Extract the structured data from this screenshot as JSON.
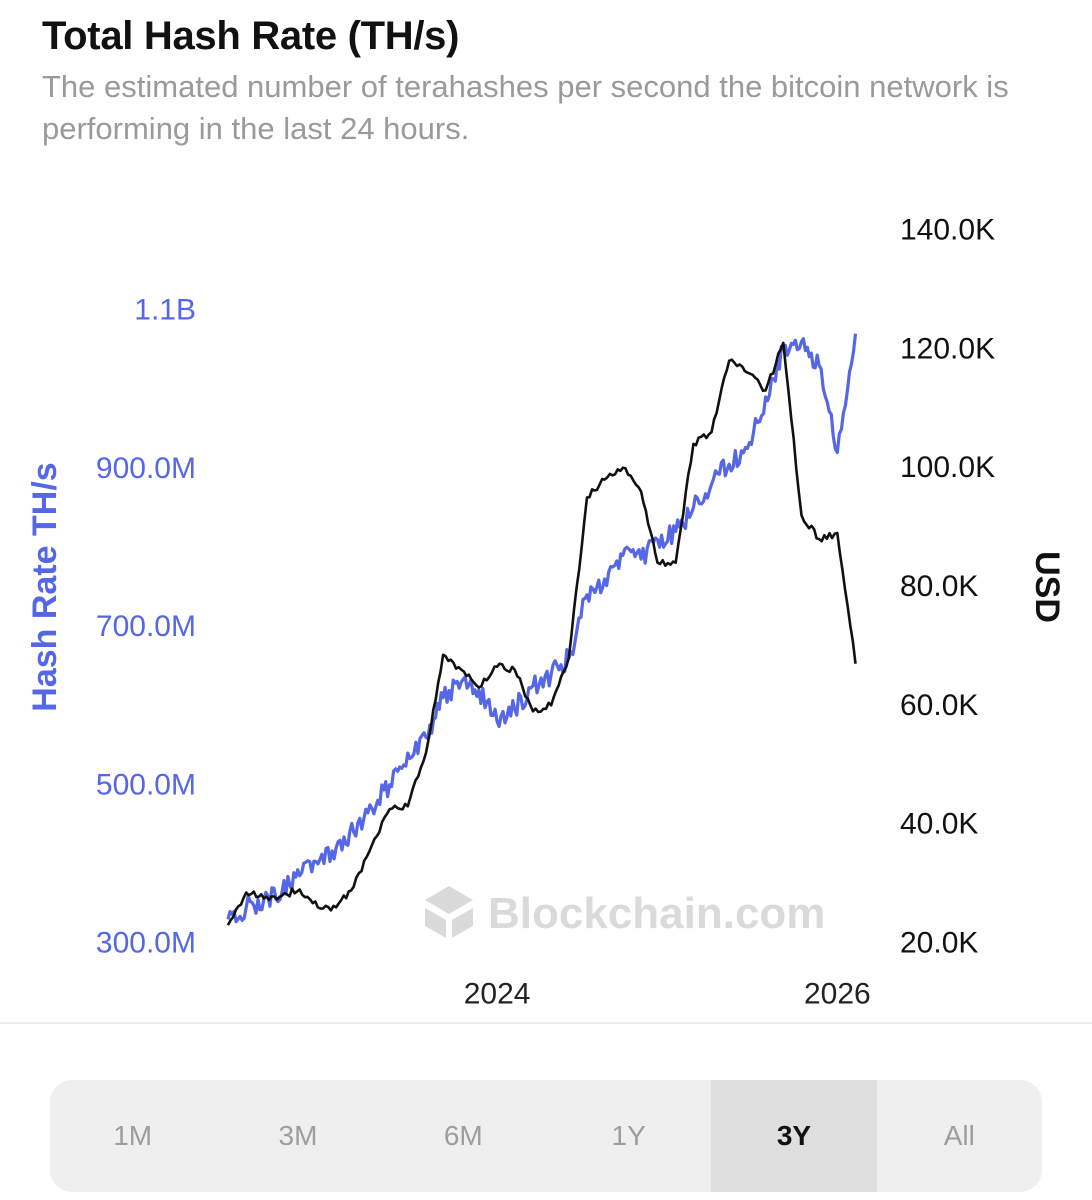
{
  "header": {
    "title": "Total Hash Rate (TH/s)",
    "subtitle": "The estimated number of terahashes per second the bitcoin network is performing in the last 24 hours."
  },
  "watermark": "Blockchain.com",
  "range_tabs": [
    {
      "label": "1M",
      "active": false
    },
    {
      "label": "3M",
      "active": false
    },
    {
      "label": "6M",
      "active": false
    },
    {
      "label": "1Y",
      "active": false
    },
    {
      "label": "3Y",
      "active": true
    },
    {
      "label": "All",
      "active": false
    }
  ],
  "colors": {
    "hash_rate": "#5567e6",
    "price": "#111111",
    "axis_left": "#5567e6",
    "axis_right": "#111111"
  },
  "chart_data": {
    "type": "line",
    "title": "Total Hash Rate (TH/s)",
    "x_range": [
      "2023-03-01",
      "2026-03-01"
    ],
    "x_ticks": [
      {
        "label": "2024",
        "date": "2024-06-01"
      },
      {
        "label": "2026",
        "date": "2026-01-01"
      }
    ],
    "y_left": {
      "label": "Hash Rate TH/s",
      "range": [
        300000000,
        1100000000
      ],
      "ticks": [
        {
          "value": 300000000,
          "label": "300.0M"
        },
        {
          "value": 500000000,
          "label": "500.0M"
        },
        {
          "value": 700000000,
          "label": "700.0M"
        },
        {
          "value": 900000000,
          "label": "900.0M"
        },
        {
          "value": 1100000000,
          "label": "1.1B"
        }
      ]
    },
    "y_right": {
      "label": "USD",
      "range": [
        20000,
        140000
      ],
      "ticks": [
        {
          "value": 20000,
          "label": "20.0K"
        },
        {
          "value": 40000,
          "label": "40.0K"
        },
        {
          "value": 60000,
          "label": "60.0K"
        },
        {
          "value": 80000,
          "label": "80.0K"
        },
        {
          "value": 100000,
          "label": "100.0K"
        },
        {
          "value": 120000,
          "label": "120.0K"
        },
        {
          "value": 140000,
          "label": "140.0K"
        }
      ]
    },
    "grid": false,
    "series": [
      {
        "axis": "left",
        "color": "#5567e6",
        "x": [
          "2023-03",
          "2023-04",
          "2023-05",
          "2023-06",
          "2023-07",
          "2023-08",
          "2023-09",
          "2023-10",
          "2023-11",
          "2023-12",
          "2024-01",
          "2024-02",
          "2024-03",
          "2024-04",
          "2024-05",
          "2024-06",
          "2024-07",
          "2024-08",
          "2024-09",
          "2024-10",
          "2024-11",
          "2024-12",
          "2025-01",
          "2025-02",
          "2025-03",
          "2025-04",
          "2025-05",
          "2025-06",
          "2025-07",
          "2025-08",
          "2025-09",
          "2025-10",
          "2025-11",
          "2025-12",
          "2026-01",
          "2026-02"
        ],
        "y": [
          330000000,
          345000000,
          355000000,
          365000000,
          385000000,
          400000000,
          420000000,
          440000000,
          470000000,
          500000000,
          540000000,
          560000000,
          610000000,
          630000000,
          620000000,
          580000000,
          595000000,
          625000000,
          640000000,
          660000000,
          740000000,
          760000000,
          790000000,
          785000000,
          810000000,
          820000000,
          850000000,
          880000000,
          905000000,
          925000000,
          990000000,
          1050000000,
          1060000000,
          1030000000,
          920000000,
          1070000000
        ]
      },
      {
        "axis": "right",
        "color": "#111111",
        "x": [
          "2023-03",
          "2023-04",
          "2023-05",
          "2023-06",
          "2023-07",
          "2023-08",
          "2023-09",
          "2023-10",
          "2023-11",
          "2023-12",
          "2024-01",
          "2024-02",
          "2024-03",
          "2024-04",
          "2024-05",
          "2024-06",
          "2024-07",
          "2024-08",
          "2024-09",
          "2024-10",
          "2024-11",
          "2024-12",
          "2025-01",
          "2025-02",
          "2025-03",
          "2025-04",
          "2025-05",
          "2025-06",
          "2025-07",
          "2025-08",
          "2025-09",
          "2025-10",
          "2025-11",
          "2025-12",
          "2026-01",
          "2026-02"
        ],
        "y": [
          23000,
          28500,
          27500,
          28000,
          29000,
          26000,
          26000,
          29500,
          36500,
          42500,
          43000,
          52000,
          68500,
          66000,
          63000,
          66500,
          66000,
          59000,
          60000,
          68000,
          95000,
          98000,
          100000,
          96000,
          84000,
          84000,
          104000,
          106000,
          118000,
          116000,
          113000,
          121000,
          92000,
          88000,
          89000,
          67000
        ]
      }
    ]
  }
}
